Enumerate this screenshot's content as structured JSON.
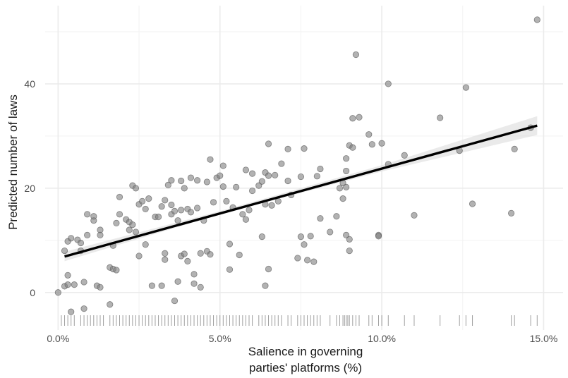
{
  "chart_data": {
    "type": "scatter",
    "xlabel_lines": [
      "Salience in governing",
      "parties' platforms (%)"
    ],
    "ylabel": "Predicted number of laws",
    "xlim": [
      -0.004,
      0.156
    ],
    "ylim": [
      -7.2,
      55
    ],
    "x_ticks": [
      0.0,
      0.05,
      0.1,
      0.15
    ],
    "x_tick_labels": [
      "0.0%",
      "5.0%",
      "10.0%",
      "15.0%"
    ],
    "y_ticks": [
      0,
      20,
      40
    ],
    "y_tick_labels": [
      "0",
      "20",
      "40"
    ],
    "grid": true,
    "colors": {
      "points": "#7f7f7f",
      "fit": "#000000",
      "band": "#d9d9d9",
      "rug": "#7f7f7f",
      "grid": "#ebebeb"
    },
    "fit_line": {
      "x": [
        0.002,
        0.148
      ],
      "y": [
        6.9,
        32.0
      ]
    },
    "fit_band": {
      "x": [
        0.002,
        0.05,
        0.1,
        0.148
      ],
      "lower": [
        6.0,
        15.0,
        23.2,
        30.2
      ],
      "upper": [
        7.8,
        15.6,
        24.4,
        33.8
      ]
    },
    "points": [
      [
        0.0,
        0.0
      ],
      [
        0.002,
        1.2
      ],
      [
        0.002,
        8.0
      ],
      [
        0.003,
        1.5
      ],
      [
        0.003,
        3.3
      ],
      [
        0.003,
        9.8
      ],
      [
        0.004,
        -3.7
      ],
      [
        0.004,
        10.4
      ],
      [
        0.005,
        1.5
      ],
      [
        0.006,
        10.1
      ],
      [
        0.007,
        8.0
      ],
      [
        0.007,
        9.5
      ],
      [
        0.008,
        -3.1
      ],
      [
        0.008,
        2.0
      ],
      [
        0.009,
        15.0
      ],
      [
        0.009,
        11.0
      ],
      [
        0.011,
        13.8
      ],
      [
        0.011,
        14.6
      ],
      [
        0.012,
        1.3
      ],
      [
        0.013,
        1.0
      ],
      [
        0.013,
        12.0
      ],
      [
        0.013,
        11.0
      ],
      [
        0.016,
        4.8
      ],
      [
        0.016,
        -2.3
      ],
      [
        0.017,
        9.0
      ],
      [
        0.017,
        4.5
      ],
      [
        0.018,
        4.3
      ],
      [
        0.018,
        13.3
      ],
      [
        0.019,
        15.0
      ],
      [
        0.019,
        18.3
      ],
      [
        0.021,
        14.0
      ],
      [
        0.022,
        13.5
      ],
      [
        0.022,
        12.0
      ],
      [
        0.023,
        13.0
      ],
      [
        0.023,
        20.5
      ],
      [
        0.024,
        20.0
      ],
      [
        0.024,
        11.6
      ],
      [
        0.025,
        7.0
      ],
      [
        0.025,
        16.9
      ],
      [
        0.026,
        17.5
      ],
      [
        0.027,
        9.2
      ],
      [
        0.027,
        16.0
      ],
      [
        0.028,
        18.0
      ],
      [
        0.029,
        1.3
      ],
      [
        0.03,
        14.5
      ],
      [
        0.031,
        14.5
      ],
      [
        0.032,
        16.5
      ],
      [
        0.032,
        1.3
      ],
      [
        0.033,
        17.7
      ],
      [
        0.033,
        7.5
      ],
      [
        0.033,
        6.3
      ],
      [
        0.034,
        20.6
      ],
      [
        0.035,
        15.0
      ],
      [
        0.035,
        16.8
      ],
      [
        0.035,
        21.5
      ],
      [
        0.036,
        15.6
      ],
      [
        0.036,
        -1.6
      ],
      [
        0.037,
        2.1
      ],
      [
        0.037,
        13.8
      ],
      [
        0.038,
        7.0
      ],
      [
        0.038,
        15.8
      ],
      [
        0.038,
        21.4
      ],
      [
        0.039,
        20.0
      ],
      [
        0.039,
        7.4
      ],
      [
        0.04,
        16.0
      ],
      [
        0.04,
        6.0
      ],
      [
        0.041,
        15.4
      ],
      [
        0.041,
        22.0
      ],
      [
        0.042,
        1.7
      ],
      [
        0.042,
        3.5
      ],
      [
        0.043,
        16.2
      ],
      [
        0.043,
        21.5
      ],
      [
        0.044,
        7.5
      ],
      [
        0.044,
        1.0
      ],
      [
        0.045,
        13.8
      ],
      [
        0.046,
        21.2
      ],
      [
        0.046,
        7.9
      ],
      [
        0.047,
        25.5
      ],
      [
        0.047,
        7.3
      ],
      [
        0.048,
        17.3
      ],
      [
        0.049,
        22.0
      ],
      [
        0.05,
        22.4
      ],
      [
        0.051,
        24.3
      ],
      [
        0.051,
        20.3
      ],
      [
        0.052,
        17.5
      ],
      [
        0.053,
        9.3
      ],
      [
        0.053,
        4.4
      ],
      [
        0.054,
        16.3
      ],
      [
        0.055,
        20.2
      ],
      [
        0.056,
        7.2
      ],
      [
        0.057,
        15.0
      ],
      [
        0.058,
        14.0
      ],
      [
        0.058,
        23.5
      ],
      [
        0.059,
        15.8
      ],
      [
        0.06,
        22.8
      ],
      [
        0.06,
        19.5
      ],
      [
        0.062,
        20.5
      ],
      [
        0.063,
        21.3
      ],
      [
        0.063,
        10.7
      ],
      [
        0.064,
        1.3
      ],
      [
        0.064,
        16.9
      ],
      [
        0.064,
        23.0
      ],
      [
        0.065,
        22.4
      ],
      [
        0.065,
        4.5
      ],
      [
        0.065,
        28.5
      ],
      [
        0.066,
        16.7
      ],
      [
        0.067,
        22.5
      ],
      [
        0.068,
        17.5
      ],
      [
        0.069,
        24.7
      ],
      [
        0.071,
        21.4
      ],
      [
        0.071,
        27.5
      ],
      [
        0.072,
        18.7
      ],
      [
        0.074,
        6.6
      ],
      [
        0.075,
        22.2
      ],
      [
        0.075,
        10.7
      ],
      [
        0.076,
        27.6
      ],
      [
        0.076,
        9.2
      ],
      [
        0.077,
        6.2
      ],
      [
        0.078,
        10.8
      ],
      [
        0.079,
        5.9
      ],
      [
        0.08,
        22.3
      ],
      [
        0.081,
        14.2
      ],
      [
        0.081,
        23.7
      ],
      [
        0.084,
        11.6
      ],
      [
        0.086,
        14.6
      ],
      [
        0.087,
        20.0
      ],
      [
        0.088,
        18.0
      ],
      [
        0.088,
        21.0
      ],
      [
        0.089,
        25.7
      ],
      [
        0.089,
        11.0
      ],
      [
        0.089,
        23.3
      ],
      [
        0.089,
        20.2
      ],
      [
        0.09,
        8.0
      ],
      [
        0.09,
        10.2
      ],
      [
        0.09,
        28.2
      ],
      [
        0.091,
        27.8
      ],
      [
        0.091,
        33.4
      ],
      [
        0.092,
        45.6
      ],
      [
        0.093,
        33.6
      ],
      [
        0.096,
        30.3
      ],
      [
        0.097,
        28.4
      ],
      [
        0.099,
        11.0
      ],
      [
        0.099,
        10.8
      ],
      [
        0.1,
        28.6
      ],
      [
        0.102,
        40.0
      ],
      [
        0.102,
        24.6
      ],
      [
        0.11,
        14.8
      ],
      [
        0.107,
        26.3
      ],
      [
        0.118,
        33.5
      ],
      [
        0.124,
        27.2
      ],
      [
        0.126,
        39.3
      ],
      [
        0.128,
        17.0
      ],
      [
        0.14,
        15.2
      ],
      [
        0.141,
        27.5
      ],
      [
        0.146,
        31.6
      ],
      [
        0.148,
        52.3
      ]
    ],
    "rug_x": [
      0.001,
      0.002,
      0.003,
      0.004,
      0.005,
      0.007,
      0.008,
      0.009,
      0.01,
      0.011,
      0.012,
      0.013,
      0.014,
      0.016,
      0.017,
      0.018,
      0.019,
      0.02,
      0.021,
      0.022,
      0.023,
      0.024,
      0.025,
      0.026,
      0.027,
      0.028,
      0.029,
      0.03,
      0.031,
      0.032,
      0.033,
      0.034,
      0.035,
      0.036,
      0.037,
      0.038,
      0.039,
      0.04,
      0.041,
      0.042,
      0.043,
      0.044,
      0.045,
      0.046,
      0.047,
      0.048,
      0.049,
      0.05,
      0.051,
      0.052,
      0.053,
      0.054,
      0.055,
      0.056,
      0.057,
      0.058,
      0.059,
      0.06,
      0.062,
      0.063,
      0.064,
      0.065,
      0.066,
      0.067,
      0.068,
      0.069,
      0.071,
      0.072,
      0.074,
      0.075,
      0.076,
      0.077,
      0.078,
      0.079,
      0.08,
      0.081,
      0.084,
      0.086,
      0.087,
      0.088,
      0.0885,
      0.089,
      0.0895,
      0.09,
      0.091,
      0.092,
      0.093,
      0.096,
      0.097,
      0.099,
      0.1,
      0.102,
      0.107,
      0.11,
      0.118,
      0.124,
      0.126,
      0.128,
      0.14,
      0.141,
      0.146,
      0.148
    ]
  }
}
